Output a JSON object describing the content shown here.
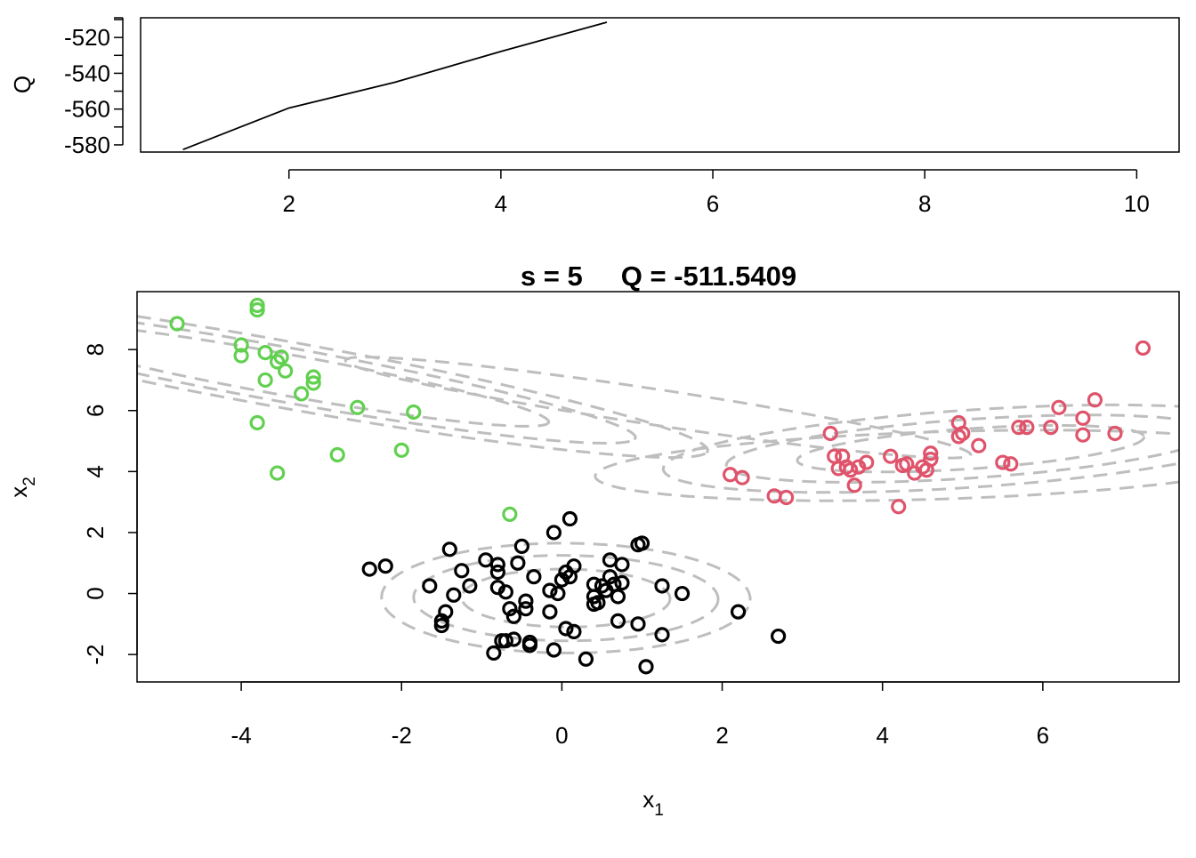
{
  "chart_data": [
    {
      "type": "line",
      "title": "",
      "xlabel": "",
      "ylabel": "Q",
      "xlim": [
        0.6,
        10.4
      ],
      "ylim": [
        -584,
        -509
      ],
      "xticks": [
        2,
        4,
        6,
        8,
        10
      ],
      "yticks": [
        -580,
        -560,
        -540,
        -520
      ],
      "x": [
        1,
        2,
        3,
        4,
        5
      ],
      "y": [
        -582.6,
        -559.4,
        -545.0,
        -527.8,
        -511.5
      ]
    },
    {
      "type": "scatter",
      "title": "s = 5     Q = -511.5409",
      "xlabel": "x",
      "xlabel_sub": "1",
      "ylabel": "x",
      "ylabel_sub": "2",
      "xlim": [
        -5.3,
        7.7
      ],
      "ylim": [
        -2.9,
        9.9
      ],
      "xticks": [
        -4,
        -2,
        0,
        2,
        4,
        6
      ],
      "yticks": [
        -2,
        0,
        2,
        4,
        6,
        8
      ],
      "grid": false,
      "colors": {
        "black": "#000000",
        "red": "#df536b",
        "green": "#61d04f",
        "contour": "#bebebe"
      },
      "series": [
        {
          "color": "#000000",
          "points": [
            [
              -2.4,
              0.8
            ],
            [
              -2.2,
              0.9
            ],
            [
              -1.65,
              0.25
            ],
            [
              -1.5,
              -0.9
            ],
            [
              -1.45,
              -0.6
            ],
            [
              -1.5,
              -1.05
            ],
            [
              -1.4,
              1.45
            ],
            [
              -1.35,
              -0.05
            ],
            [
              -1.25,
              0.75
            ],
            [
              -1.15,
              0.25
            ],
            [
              -0.95,
              1.1
            ],
            [
              -0.85,
              -1.95
            ],
            [
              -0.8,
              0.7
            ],
            [
              -0.8,
              0.95
            ],
            [
              -0.8,
              0.2
            ],
            [
              -0.75,
              -1.55
            ],
            [
              -0.7,
              -1.55
            ],
            [
              -0.7,
              0.05
            ],
            [
              -0.65,
              -0.5
            ],
            [
              -0.6,
              -0.75
            ],
            [
              -0.6,
              -1.5
            ],
            [
              -0.55,
              1.0
            ],
            [
              -0.5,
              1.55
            ],
            [
              -0.45,
              -0.5
            ],
            [
              -0.45,
              -0.25
            ],
            [
              -0.4,
              -1.6
            ],
            [
              -0.4,
              -1.7
            ],
            [
              -0.35,
              0.55
            ],
            [
              -0.15,
              -0.6
            ],
            [
              -0.15,
              0.1
            ],
            [
              -0.1,
              -1.85
            ],
            [
              -0.05,
              0.0
            ],
            [
              0.0,
              0.45
            ],
            [
              0.05,
              -1.15
            ],
            [
              0.05,
              0.7
            ],
            [
              0.1,
              0.55
            ],
            [
              0.15,
              -1.25
            ],
            [
              0.15,
              0.9
            ],
            [
              0.4,
              0.3
            ],
            [
              0.4,
              -0.35
            ],
            [
              0.4,
              -0.1
            ],
            [
              0.45,
              -0.3
            ],
            [
              0.5,
              0.25
            ],
            [
              0.55,
              0.1
            ],
            [
              0.6,
              0.55
            ],
            [
              0.65,
              0.3
            ],
            [
              0.6,
              1.1
            ],
            [
              0.7,
              -0.1
            ],
            [
              0.7,
              -0.9
            ],
            [
              0.75,
              0.35
            ],
            [
              0.75,
              0.95
            ],
            [
              0.95,
              1.6
            ],
            [
              1.0,
              1.65
            ],
            [
              0.95,
              -1.0
            ],
            [
              1.05,
              -2.4
            ],
            [
              1.25,
              0.25
            ],
            [
              1.25,
              -1.35
            ],
            [
              1.5,
              0.0
            ],
            [
              2.2,
              -0.6
            ],
            [
              2.7,
              -1.4
            ],
            [
              0.3,
              -2.15
            ],
            [
              -0.1,
              2.0
            ],
            [
              0.1,
              2.45
            ]
          ]
        },
        {
          "color": "#df536b",
          "points": [
            [
              2.1,
              3.9
            ],
            [
              2.25,
              3.8
            ],
            [
              2.65,
              3.2
            ],
            [
              2.8,
              3.15
            ],
            [
              3.35,
              5.25
            ],
            [
              3.4,
              4.5
            ],
            [
              3.5,
              4.5
            ],
            [
              3.45,
              4.1
            ],
            [
              3.55,
              4.15
            ],
            [
              3.6,
              4.05
            ],
            [
              3.65,
              3.55
            ],
            [
              3.7,
              4.15
            ],
            [
              3.8,
              4.3
            ],
            [
              4.1,
              4.5
            ],
            [
              4.2,
              2.85
            ],
            [
              4.25,
              4.2
            ],
            [
              4.3,
              4.25
            ],
            [
              4.4,
              3.95
            ],
            [
              4.5,
              4.15
            ],
            [
              4.55,
              4.05
            ],
            [
              4.6,
              4.4
            ],
            [
              4.6,
              4.6
            ],
            [
              4.95,
              5.15
            ],
            [
              4.95,
              5.6
            ],
            [
              5.0,
              5.25
            ],
            [
              5.2,
              4.85
            ],
            [
              5.5,
              4.3
            ],
            [
              5.6,
              4.25
            ],
            [
              5.7,
              5.45
            ],
            [
              5.8,
              5.45
            ],
            [
              6.1,
              5.45
            ],
            [
              6.2,
              6.1
            ],
            [
              6.5,
              5.75
            ],
            [
              6.5,
              5.2
            ],
            [
              6.65,
              6.35
            ],
            [
              6.9,
              5.25
            ],
            [
              7.25,
              8.05
            ]
          ]
        },
        {
          "color": "#61d04f",
          "points": [
            [
              -4.8,
              8.85
            ],
            [
              -4.0,
              8.15
            ],
            [
              -4.0,
              7.8
            ],
            [
              -3.8,
              9.3
            ],
            [
              -3.8,
              9.45
            ],
            [
              -3.8,
              5.6
            ],
            [
              -3.7,
              7.9
            ],
            [
              -3.7,
              7.0
            ],
            [
              -3.55,
              7.6
            ],
            [
              -3.5,
              7.75
            ],
            [
              -3.45,
              7.3
            ],
            [
              -3.55,
              3.95
            ],
            [
              -3.25,
              6.55
            ],
            [
              -3.1,
              6.9
            ],
            [
              -3.1,
              7.1
            ],
            [
              -2.8,
              4.55
            ],
            [
              -2.55,
              6.1
            ],
            [
              -2.0,
              4.7
            ],
            [
              -1.85,
              5.95
            ],
            [
              -0.65,
              2.6
            ]
          ]
        }
      ],
      "contours": [
        {
          "cx": 0.05,
          "cy": -0.15,
          "rx": [
            2.3,
            1.9,
            1.3
          ],
          "ry": [
            1.8,
            1.4,
            0.95
          ],
          "angle_deg": -2
        },
        {
          "cx": 5.1,
          "cy": 4.75,
          "rx": [
            3.9,
            3.1,
            2.2
          ],
          "ry": [
            1.25,
            0.95,
            0.65
          ],
          "angle_deg": 11
        },
        {
          "cx": -3.5,
          "cy": 7.2,
          "rx": [
            5.9,
            4.9,
            3.7
          ],
          "ry": [
            1.0,
            0.82,
            0.62
          ],
          "angle_deg": -26
        },
        {
          "cx": 1.2,
          "cy": 6.1,
          "rx": [
            4.2
          ],
          "ry": [
            0.55
          ],
          "angle_deg": -22
        },
        {
          "cx": 4.7,
          "cy": 4.2,
          "rx": [
            4.3
          ],
          "ry": [
            1.1
          ],
          "angle_deg": 5
        }
      ]
    }
  ]
}
